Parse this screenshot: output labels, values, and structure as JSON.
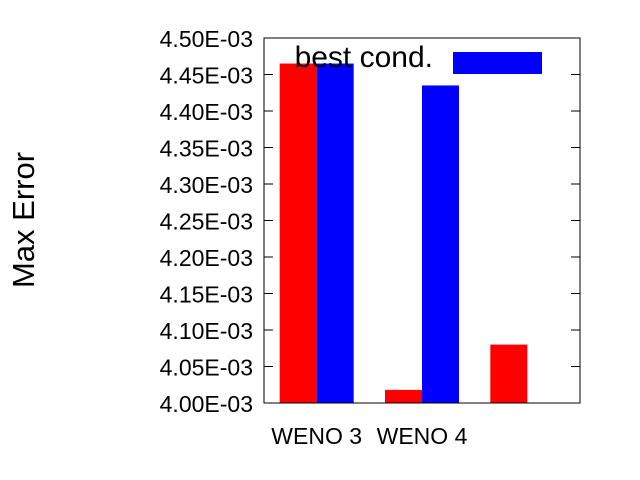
{
  "chart_data": {
    "type": "bar",
    "title": "",
    "xlabel": "",
    "ylabel": "Max Error",
    "ylim": [
      0.004,
      0.0045
    ],
    "yticks": [
      0.004,
      0.00405,
      0.0041,
      0.00415,
      0.0042,
      0.00425,
      0.0043,
      0.00435,
      0.0044,
      0.00445,
      0.0045
    ],
    "ytick_labels": [
      "4.00E-03",
      "4.05E-03",
      "4.10E-03",
      "4.15E-03",
      "4.20E-03",
      "4.25E-03",
      "4.30E-03",
      "4.35E-03",
      "4.40E-03",
      "4.45E-03",
      "4.50E-03"
    ],
    "categories": [
      "WENO 3",
      "WENO 4",
      ""
    ],
    "series": [
      {
        "name": "",
        "color": "#ff0000",
        "values": [
          0.004465,
          0.004018,
          0.00408
        ]
      },
      {
        "name": "best cond.",
        "color": "#0000ff",
        "values": [
          0.004465,
          0.004435,
          null
        ]
      }
    ],
    "legend_position": "top-right",
    "grid": false
  }
}
